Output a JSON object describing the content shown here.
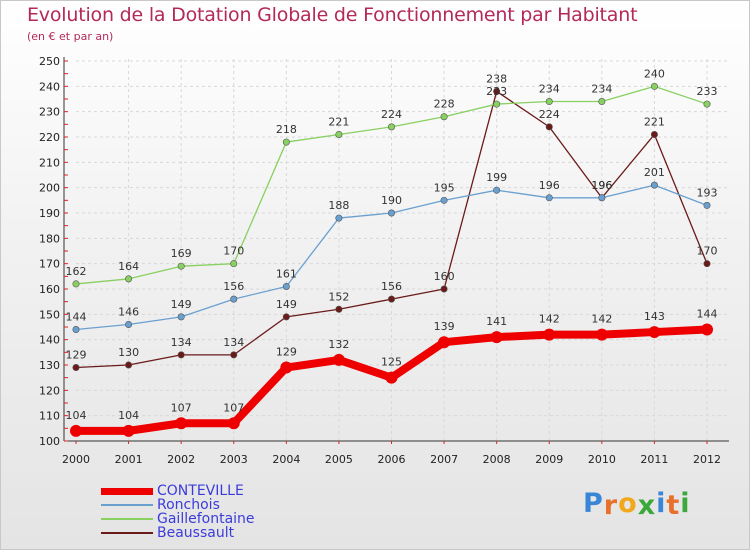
{
  "title": "Evolution de la Dotation Globale de Fonctionnement par Habitant",
  "subtitle": "(en € et par an)",
  "brand": {
    "text": "Proxiti",
    "letters": [
      "P",
      "r",
      "o",
      "x",
      "i",
      "t",
      "i"
    ],
    "colors": [
      "#3a86d6",
      "#e8702a",
      "#f2a81d",
      "#3aa83a",
      "#3a86d6",
      "#e8702a",
      "#3aa83a"
    ]
  },
  "chart_data": {
    "type": "line",
    "title": "Evolution de la Dotation Globale de Fonctionnement par Habitant",
    "subtitle": "(en € et par an)",
    "x": [
      "2000",
      "2001",
      "2002",
      "2003",
      "2004",
      "2005",
      "2006",
      "2007",
      "2008",
      "2009",
      "2010",
      "2011",
      "2012"
    ],
    "ylim": [
      100,
      250
    ],
    "yticks": [
      "100",
      "110",
      "120",
      "130",
      "140",
      "150",
      "160",
      "170",
      "180",
      "190",
      "200",
      "210",
      "220",
      "230",
      "240",
      "250"
    ],
    "grid": true,
    "legend_position": "bottom-left",
    "series": [
      {
        "name": "CONTEVILLE",
        "color": "#ee0000",
        "width": 8,
        "marker": 6,
        "values": [
          104,
          104,
          107,
          107,
          129,
          132,
          125,
          139,
          141,
          142,
          142,
          143,
          144
        ],
        "labels": [
          "104",
          "104",
          "107",
          "107",
          "129",
          "132",
          "125",
          "139",
          "141",
          "142",
          "142",
          "143",
          "144"
        ]
      },
      {
        "name": "Ronchois",
        "color": "#6aa0d0",
        "width": 1.3,
        "marker": 3.2,
        "values": [
          144,
          146,
          149,
          156,
          161,
          188,
          190,
          195,
          199,
          196,
          196,
          201,
          193
        ],
        "labels": [
          "144",
          "146",
          "149",
          "156",
          "161",
          "188",
          "190",
          "195",
          "199",
          "196",
          "196",
          "201",
          "193"
        ]
      },
      {
        "name": "Gaillefontaine",
        "color": "#88d060",
        "width": 1.3,
        "marker": 3.2,
        "values": [
          162,
          164,
          169,
          170,
          218,
          221,
          224,
          228,
          233,
          234,
          234,
          240,
          233
        ],
        "labels": [
          "162",
          "164",
          "169",
          "170",
          "218",
          "221",
          "224",
          "228",
          "233",
          "234",
          "234",
          "240",
          "233"
        ]
      },
      {
        "name": "Beaussault",
        "color": "#6b1a1a",
        "width": 1.3,
        "marker": 3.2,
        "values": [
          129,
          130,
          134,
          134,
          149,
          152,
          156,
          160,
          238,
          224,
          196,
          221,
          170
        ],
        "labels": [
          "129",
          "130",
          "134",
          "134",
          "149",
          "152",
          "156",
          "160",
          "238",
          "224",
          "196",
          "221",
          "170"
        ]
      }
    ]
  }
}
